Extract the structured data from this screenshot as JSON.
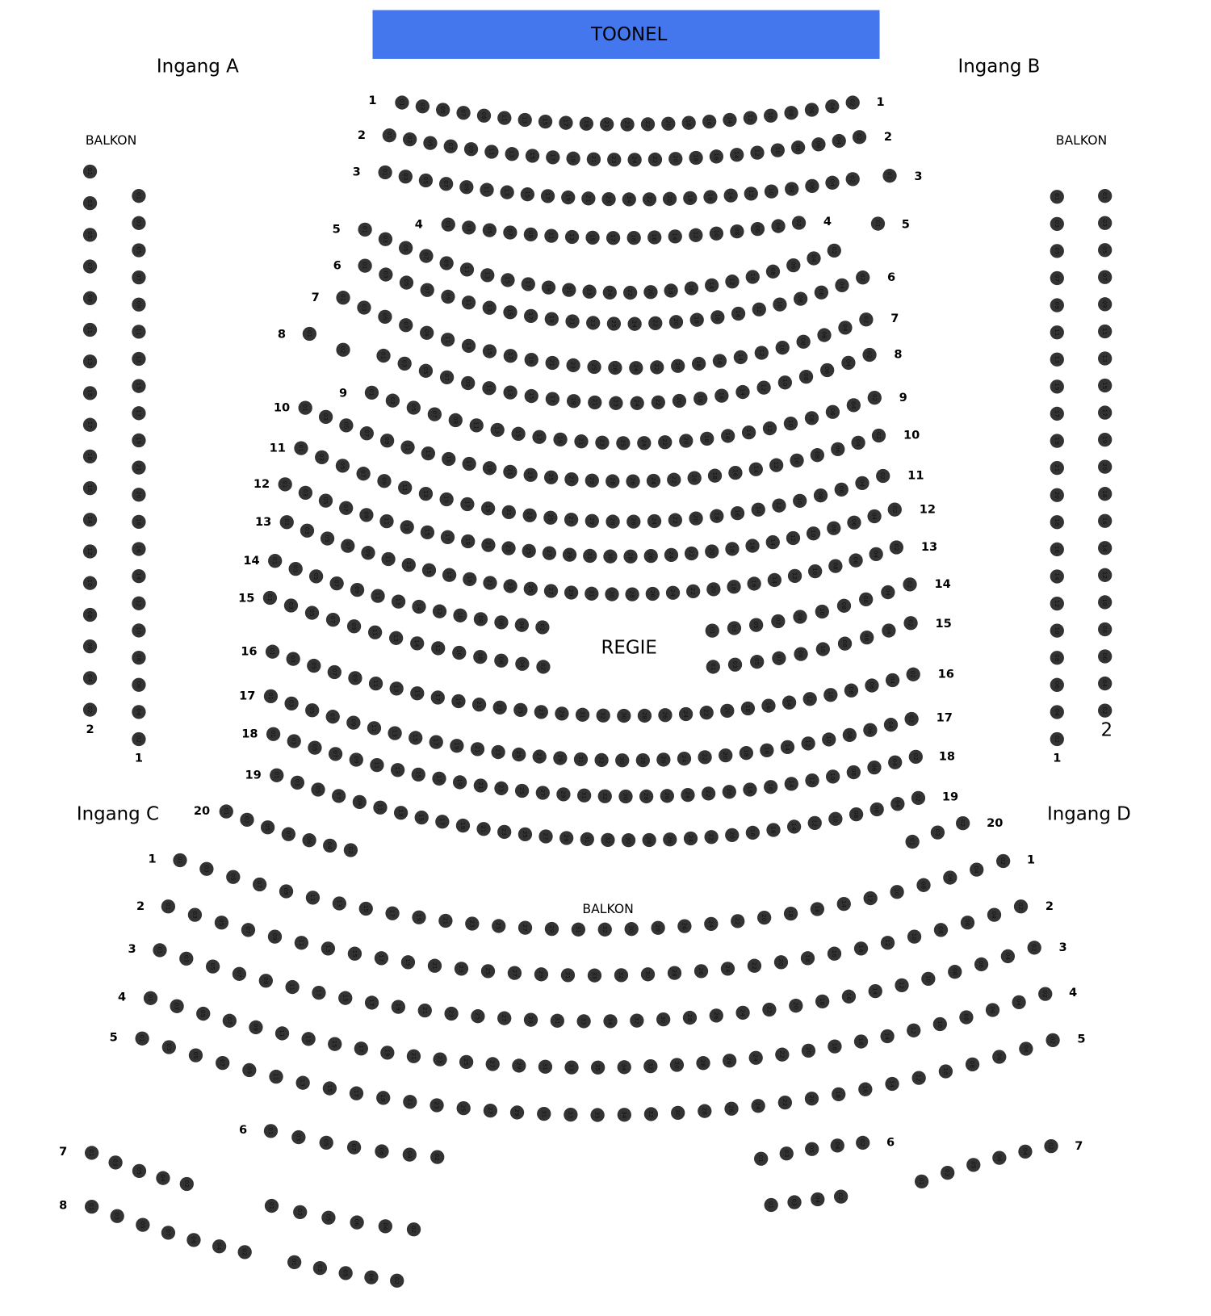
{
  "stage": {
    "label": "TOONEL",
    "color": "#4477ee"
  },
  "entrances": {
    "a": "Ingang A",
    "b": "Ingang B",
    "c": "Ingang C",
    "d": "Ingang D"
  },
  "areas": {
    "balcony_left": "BALKON",
    "balcony_right": "BALKON",
    "balcony_rear": "BALKON",
    "control": "REGIE"
  },
  "seat_color": "#333333",
  "seat_numbering": "odd numbers ascending from left, even numbers descending to right",
  "blocks": [
    {
      "section": "parterre",
      "left": "1",
      "right": "1",
      "seats": 23
    },
    {
      "section": "parterre",
      "left": "2",
      "right": "2",
      "seats": 24
    },
    {
      "section": "parterre",
      "left": "3",
      "right": "",
      "seats": 24
    },
    {
      "section": "parterre",
      "left": "",
      "right": "3",
      "seats": 1
    },
    {
      "section": "parterre",
      "left": "4",
      "right": "4",
      "seats": 18
    },
    {
      "section": "parterre",
      "left": "5",
      "right": "",
      "seats": 24
    },
    {
      "section": "parterre",
      "left": "",
      "right": "5",
      "seats": 1
    },
    {
      "section": "parterre",
      "left": "6",
      "right": "6",
      "seats": 25
    },
    {
      "section": "parterre",
      "left": "7",
      "right": "7",
      "seats": 26
    },
    {
      "section": "parterre",
      "left": "8",
      "right": "",
      "seats": 2
    },
    {
      "section": "parterre",
      "left": "",
      "right": "8",
      "seats": 24
    },
    {
      "section": "parterre",
      "left": "9",
      "right": "9",
      "seats": 25
    },
    {
      "section": "parterre",
      "left": "10",
      "right": "10",
      "seats": 29
    },
    {
      "section": "parterre",
      "left": "11",
      "right": "11",
      "seats": 29
    },
    {
      "section": "parterre",
      "left": "12",
      "right": "12",
      "seats": 31
    },
    {
      "section": "parterre",
      "left": "13",
      "right": "13",
      "seats": 31
    },
    {
      "section": "parterre",
      "left": "14",
      "right": "",
      "seats": 14
    },
    {
      "section": "parterre",
      "left": "",
      "right": "14",
      "seats": 10
    },
    {
      "section": "parterre",
      "left": "15",
      "right": "",
      "seats": 14
    },
    {
      "section": "parterre",
      "left": "",
      "right": "15",
      "seats": 10
    },
    {
      "section": "parterre",
      "left": "16",
      "right": "16",
      "seats": 32
    },
    {
      "section": "parterre",
      "left": "17",
      "right": "17",
      "seats": 32
    },
    {
      "section": "parterre",
      "left": "18",
      "right": "18",
      "seats": 32
    },
    {
      "section": "parterre",
      "left": "19",
      "right": "19",
      "seats": 32
    },
    {
      "section": "parterre",
      "left": "20",
      "right": "",
      "seats": 7
    },
    {
      "section": "parterre",
      "left": "",
      "right": "20",
      "seats": 3
    },
    {
      "section": "balcony-left",
      "left": "",
      "right": "2",
      "seats": 18
    },
    {
      "section": "balcony-left",
      "left": "",
      "right": "1",
      "seats": 21
    },
    {
      "section": "balcony-right",
      "left": "",
      "right": "1",
      "seats": 21
    },
    {
      "section": "balcony-right",
      "left": "",
      "right": "2",
      "seats": 20
    },
    {
      "section": "balcony-rear",
      "left": "1",
      "right": "1",
      "seats": 32
    },
    {
      "section": "balcony-rear",
      "left": "2",
      "right": "2",
      "seats": 33
    },
    {
      "section": "balcony-rear",
      "left": "3",
      "right": "3",
      "seats": 34
    },
    {
      "section": "balcony-rear",
      "left": "4",
      "right": "4",
      "seats": 35
    },
    {
      "section": "balcony-rear",
      "left": "5",
      "right": "5",
      "seats": 35
    },
    {
      "section": "balcony-rear",
      "left": "6",
      "right": "",
      "seats": 7
    },
    {
      "section": "balcony-rear",
      "left": "",
      "right": "6",
      "seats": 5
    },
    {
      "section": "balcony-rear",
      "left": "7",
      "right": "",
      "seats": 5
    },
    {
      "section": "balcony-rear",
      "left": "",
      "right": "7",
      "seats": 6
    },
    {
      "section": "balcony-rear",
      "left": "8",
      "right": "",
      "seats": 7
    },
    {
      "section": "balcony-rear",
      "left": "",
      "right": "",
      "seats": 6
    },
    {
      "section": "balcony-rear",
      "left": "",
      "right": "",
      "seats": 5
    },
    {
      "section": "balcony-rear",
      "left": "",
      "right": "",
      "seats": 4
    }
  ]
}
